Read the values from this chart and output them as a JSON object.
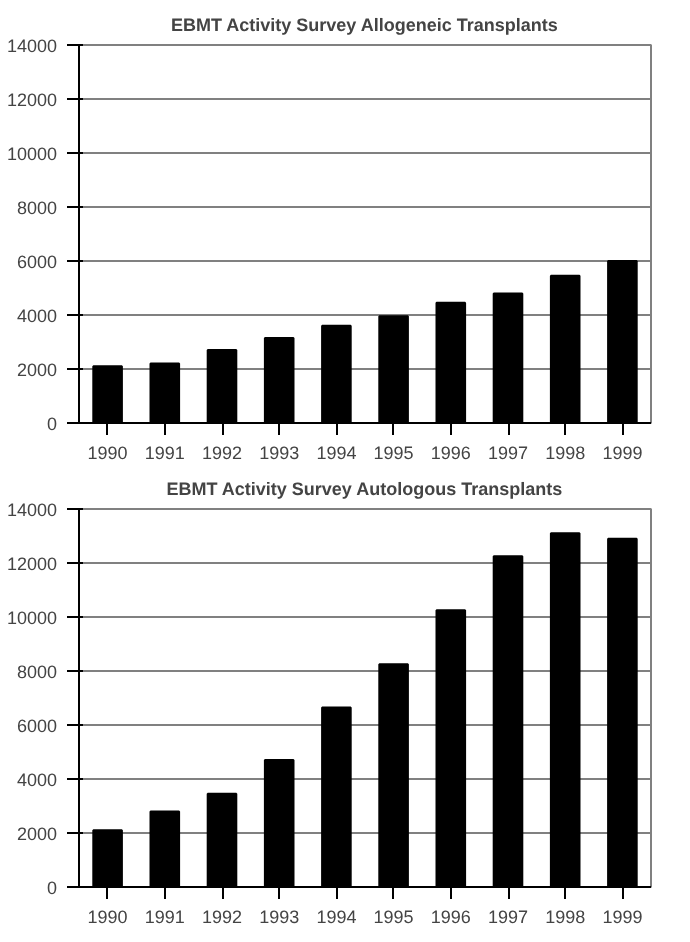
{
  "chart_data": [
    {
      "type": "bar",
      "title": "EBMT Activity Survey Allogeneic Transplants",
      "categories": [
        "1990",
        "1991",
        "1992",
        "1993",
        "1994",
        "1995",
        "1996",
        "1997",
        "1998",
        "1999"
      ],
      "series": [
        {
          "color": "#000000",
          "values": [
            2100,
            2200,
            2700,
            3150,
            3600,
            3950,
            4450,
            4800,
            5450,
            6000
          ]
        }
      ],
      "ylim": [
        0,
        14000
      ],
      "yticks": [
        0,
        2000,
        4000,
        6000,
        8000,
        10000,
        12000,
        14000
      ],
      "grid": "y"
    },
    {
      "type": "bar",
      "title": "EBMT Activity Survey Autologous Transplants",
      "categories": [
        "1990",
        "1991",
        "1992",
        "1993",
        "1994",
        "1995",
        "1996",
        "1997",
        "1998",
        "1999"
      ],
      "series": [
        {
          "color": "#000000",
          "values": [
            2100,
            2800,
            3450,
            4700,
            6650,
            8250,
            10250,
            12250,
            13100,
            12900
          ]
        }
      ],
      "ylim": [
        0,
        14000
      ],
      "yticks": [
        0,
        2000,
        4000,
        6000,
        8000,
        10000,
        12000,
        14000
      ],
      "grid": "y"
    }
  ]
}
